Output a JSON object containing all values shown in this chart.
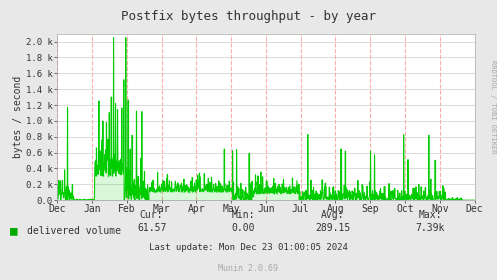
{
  "title": "Postfix bytes throughput - by year",
  "ylabel": "bytes / second",
  "y_tick_labels": [
    "0.0",
    "0.2 k",
    "0.4 k",
    "0.6 k",
    "0.8 k",
    "1.0 k",
    "1.2 k",
    "1.4 k",
    "1.6 k",
    "1.8 k",
    "2.0 k"
  ],
  "ylim": [
    0,
    2100
  ],
  "x_month_labels": [
    "Dec",
    "Jan",
    "Feb",
    "Mar",
    "Apr",
    "May",
    "Jun",
    "Jul",
    "Aug",
    "Sep",
    "Oct",
    "Nov",
    "Dec"
  ],
  "legend_label": "delivered volume",
  "cur": "61.57",
  "min": "0.00",
  "avg": "289.15",
  "max": "7.39k",
  "last_update": "Last update: Mon Dec 23 01:00:05 2024",
  "munin_version": "Munin 2.0.69",
  "rrdtool_text": "RRDTOOL / TOBI OETIKER",
  "bg_color": "#e8e8e8",
  "plot_bg_color": "#ffffff",
  "line_color": "#00cc00",
  "grid_v_color": "#ffaaaa",
  "grid_h_color": "#cccccc",
  "title_color": "#333333",
  "legend_color": "#00aa00",
  "font_color": "#333333",
  "rrd_color": "#aaaaaa"
}
